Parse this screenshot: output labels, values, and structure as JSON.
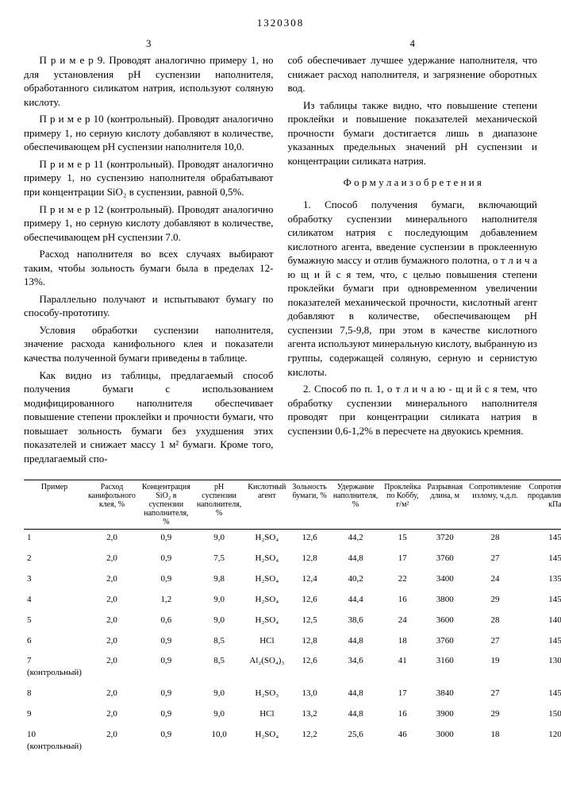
{
  "page_number": "1320308",
  "col_marker_left": "3",
  "col_marker_right": "4",
  "left_col": {
    "p1": "П р и м е р  9. Проводят аналогично примеру 1, но для установления pH суспензии наполнителя, обработанного силикатом натрия, используют соляную кислоту.",
    "p2": "П р и м е р  10 (контрольный). Проводят аналогично примеру 1, но серную кислоту добавляют в количестве, обеспечивающем pH суспензии наполнителя 10,0.",
    "p3": "П р и м е р  11 (контрольный). Проводят аналогично примеру 1, но суспензию наполнителя обрабатывают при концентрации SiO₂ в суспензии, равной 0,5%.",
    "p4": "П р и м е р  12 (контрольный). Проводят аналогично примеру 1, но серную кислоту добавляют в количестве, обеспечивающем pH суспензии 7.0.",
    "p5": "Расход наполнителя во всех случаях выбирают таким, чтобы зольность бумаги была в пределах 12-13%.",
    "p6": "Параллельно получают и испытывают бумагу по способу-прототипу.",
    "p7": "Условия обработки суспензии наполнителя, значение расхода канифольного клея и показатели качества полученной бумаги приведены в таблице.",
    "p8": "Как видно из таблицы, предлагаемый способ получения бумаги с использованием модифицированного наполнителя обеспечивает повышение степени проклейки и прочности бумаги, что повышает зольность бумаги без ухудшения этих показателей и снижает массу 1 м² бумаги. Кроме того, предлагаемый спо-"
  },
  "right_col": {
    "p1": "соб обеспечивает лучшее удержание наполнителя, что снижает расход наполнителя, и загрязнение оборотных вод.",
    "p2": "Из таблицы также видно, что повышение степени проклейки и повышение показателей механической прочности бумаги достигается лишь в диапазоне указанных предельных значений pH суспензии и концентрации силиката натрия.",
    "formula_title": "Ф о р м у л а   и з о б р е т е н и я",
    "p3": "1. Способ получения бумаги, включающий обработку суспензии минерального наполнителя силикатом натрия с последующим добавлением кислотного агента, введение суспензии в проклеенную бумажную массу и отлив бумажного полотна, о т л и ч а ю щ и й с я  тем, что, с целью повышения степени проклейки бумаги при одновременном увеличении показателей механической прочности, кислотный агент добавляют в количестве, обеспечивающем pH суспензии 7,5-9,8, при этом в качестве кислотного агента используют минеральную кислоту, выбранную из группы, содержащей соляную, серную и сернистую кислоты.",
    "p4": "2. Способ по п. 1, о т л и ч а ю - щ и й с я  тем, что обработку суспензии минерального наполнителя проводят при концентрации силиката натрия в суспензии 0,6-1,2% в пересчете на двуокись кремния."
  },
  "table": {
    "headers": [
      "Пример",
      "Расход канифольного клея, %",
      "Концентрация SiO₂ в суспензии наполнителя, %",
      "pH суспензии наполнителя, %",
      "Кислотный агент",
      "Зольность бумаги, %",
      "Удержание наполнителя, %",
      "Проклейка по Коббу, г/м²",
      "Разрывная длина, м",
      "Сопротивление излому, ч.д.п.",
      "Сопротивление продавливанию, кПа"
    ],
    "rows": [
      [
        "1",
        "2,0",
        "0,9",
        "9,0",
        "H₂SO₄",
        "12,6",
        "44,2",
        "15",
        "3720",
        "28",
        "145"
      ],
      [
        "2",
        "2,0",
        "0,9",
        "7,5",
        "H₂SO₄",
        "12,8",
        "44,8",
        "17",
        "3760",
        "27",
        "145"
      ],
      [
        "3",
        "2,0",
        "0,9",
        "9,8",
        "H₂SO₄",
        "12,4",
        "40,2",
        "22",
        "3400",
        "24",
        "135"
      ],
      [
        "4",
        "2,0",
        "1,2",
        "9,0",
        "H₂SO₄",
        "12,6",
        "44,4",
        "16",
        "3800",
        "29",
        "145"
      ],
      [
        "5",
        "2,0",
        "0,6",
        "9,0",
        "H₂SO₄",
        "12,5",
        "38,6",
        "24",
        "3600",
        "28",
        "140"
      ],
      [
        "6",
        "2,0",
        "0,9",
        "8,5",
        "HCl",
        "12,8",
        "44,8",
        "18",
        "3760",
        "27",
        "145"
      ],
      [
        "7 (контрольный)",
        "2,0",
        "0,9",
        "8,5",
        "Al₂(SO₄)₃",
        "12,6",
        "34,6",
        "41",
        "3160",
        "19",
        "130"
      ],
      [
        "8",
        "2,0",
        "0,9",
        "9,0",
        "H₂SO₃",
        "13,0",
        "44,8",
        "17",
        "3840",
        "27",
        "145"
      ],
      [
        "9",
        "2,0",
        "0,9",
        "9,0",
        "HCl",
        "13,2",
        "44,8",
        "16",
        "3900",
        "29",
        "150"
      ],
      [
        "10 (контрольный)",
        "2,0",
        "0,9",
        "10,0",
        "H₂SO₄",
        "12,2",
        "25,6",
        "46",
        "3000",
        "18",
        "120"
      ]
    ]
  }
}
